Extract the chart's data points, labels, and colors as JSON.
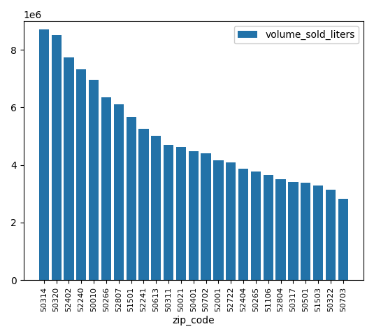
{
  "categories": [
    "50314",
    "50320",
    "52402",
    "52240",
    "50010",
    "50266",
    "52807",
    "51501",
    "52241",
    "50613",
    "50311",
    "50021",
    "50401",
    "50702",
    "52001",
    "52722",
    "52404",
    "50265",
    "51106",
    "52804",
    "50317",
    "50501",
    "51503",
    "50322",
    "50703"
  ],
  "values": [
    8700000,
    8520000,
    7750000,
    7320000,
    6970000,
    6350000,
    6100000,
    5680000,
    5250000,
    5020000,
    4700000,
    4620000,
    4490000,
    4400000,
    4170000,
    4090000,
    3880000,
    3780000,
    3650000,
    3500000,
    3400000,
    3380000,
    3280000,
    3150000,
    2820000
  ],
  "bar_color": "#2272a8",
  "xlabel": "zip_code",
  "legend_label": "volume_sold_liters",
  "ylim": [
    0,
    9000000
  ],
  "yticks": [
    0,
    2000000,
    4000000,
    6000000,
    8000000
  ]
}
